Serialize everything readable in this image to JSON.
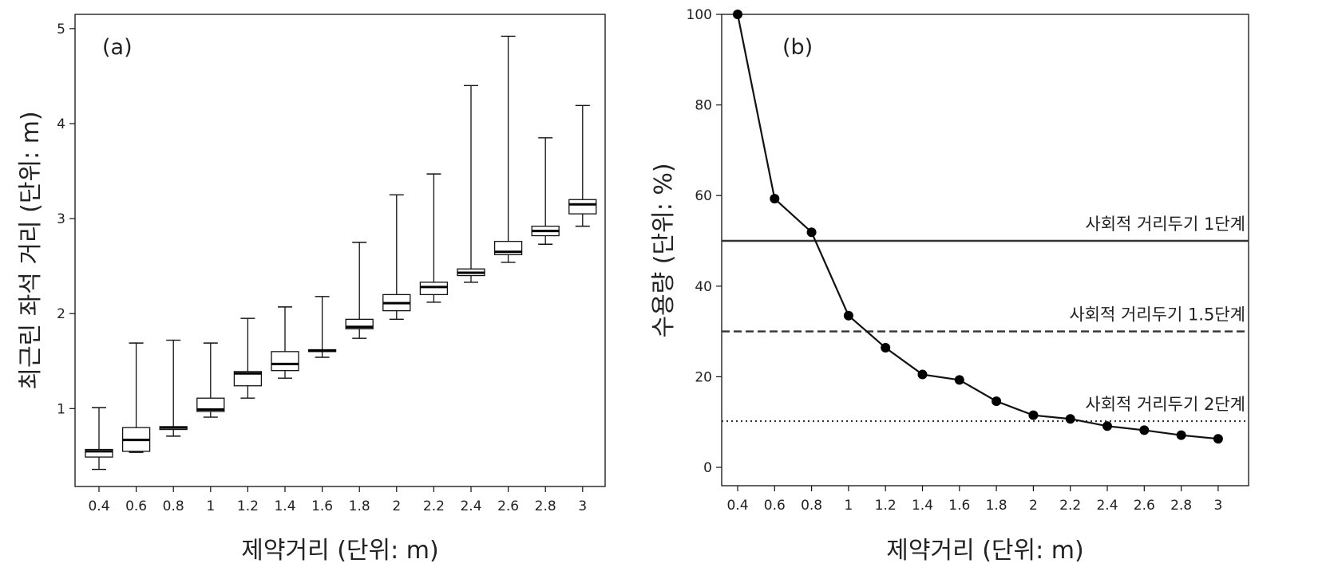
{
  "chart_data": [
    {
      "type": "box",
      "panel_label": "(a)",
      "xlabel": "제약거리 (단위: m)",
      "ylabel": "최근린 좌석 거리 (단위: m)",
      "ylim": [
        0.18,
        5.15
      ],
      "yticks": [
        "1",
        "2",
        "3",
        "4",
        "5"
      ],
      "categories": [
        "0.4",
        "0.6",
        "0.8",
        "1",
        "1.2",
        "1.4",
        "1.6",
        "1.8",
        "2",
        "2.2",
        "2.4",
        "2.6",
        "2.8",
        "3"
      ],
      "boxes": [
        {
          "min": 0.36,
          "q1": 0.49,
          "median": 0.55,
          "q3": 0.57,
          "max": 1.01
        },
        {
          "min": 0.54,
          "q1": 0.55,
          "median": 0.67,
          "q3": 0.8,
          "max": 1.69
        },
        {
          "min": 0.71,
          "q1": 0.78,
          "median": 0.8,
          "q3": 0.81,
          "max": 1.72
        },
        {
          "min": 0.91,
          "q1": 0.97,
          "median": 0.99,
          "q3": 1.11,
          "max": 1.69
        },
        {
          "min": 1.11,
          "q1": 1.24,
          "median": 1.37,
          "q3": 1.39,
          "max": 1.95
        },
        {
          "min": 1.32,
          "q1": 1.4,
          "median": 1.47,
          "q3": 1.6,
          "max": 2.07
        },
        {
          "min": 1.54,
          "q1": 1.6,
          "median": 1.61,
          "q3": 1.62,
          "max": 2.18
        },
        {
          "min": 1.74,
          "q1": 1.84,
          "median": 1.86,
          "q3": 1.94,
          "max": 2.75
        },
        {
          "min": 1.94,
          "q1": 2.03,
          "median": 2.11,
          "q3": 2.2,
          "max": 3.25
        },
        {
          "min": 2.12,
          "q1": 2.2,
          "median": 2.28,
          "q3": 2.33,
          "max": 3.47
        },
        {
          "min": 2.33,
          "q1": 2.4,
          "median": 2.43,
          "q3": 2.47,
          "max": 4.4
        },
        {
          "min": 2.54,
          "q1": 2.62,
          "median": 2.65,
          "q3": 2.76,
          "max": 4.92
        },
        {
          "min": 2.73,
          "q1": 2.82,
          "median": 2.87,
          "q3": 2.92,
          "max": 3.85
        },
        {
          "min": 2.92,
          "q1": 3.05,
          "median": 3.15,
          "q3": 3.2,
          "max": 4.19
        }
      ]
    },
    {
      "type": "line",
      "panel_label": "(b)",
      "xlabel": "제약거리 (단위: m)",
      "ylabel": "수용량 (단위: %)",
      "ylim": [
        0,
        100
      ],
      "yticks": [
        "0",
        "20",
        "40",
        "60",
        "80",
        "100"
      ],
      "x": [
        "0.4",
        "0.6",
        "0.8",
        "1",
        "1.2",
        "1.4",
        "1.6",
        "1.8",
        "2",
        "2.2",
        "2.4",
        "2.6",
        "2.8",
        "3"
      ],
      "values": [
        100,
        59.3,
        51.9,
        33.5,
        26.4,
        20.5,
        19.3,
        14.6,
        11.5,
        10.7,
        9.1,
        8.2,
        7.1,
        6.3
      ],
      "reference_lines": [
        {
          "value": 50,
          "style": "solid",
          "label": "사회적 거리두기 1단계"
        },
        {
          "value": 30,
          "style": "dashed",
          "label": "사회적 거리두기 1.5단계"
        },
        {
          "value": 10.2,
          "style": "dotted",
          "label": "사회적 거리두기 2단계"
        }
      ]
    }
  ]
}
